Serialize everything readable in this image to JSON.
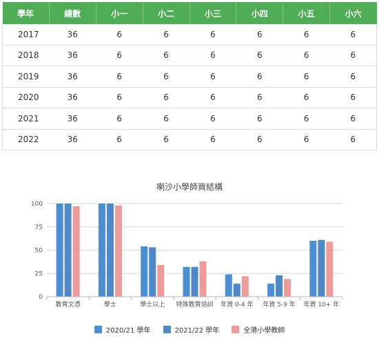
{
  "table": {
    "headers": [
      "學年",
      "總數",
      "小一",
      "小二",
      "小三",
      "小四",
      "小五",
      "小六"
    ],
    "rows": [
      [
        "2017",
        "36",
        "6",
        "6",
        "6",
        "6",
        "6",
        "6"
      ],
      [
        "2018",
        "36",
        "6",
        "6",
        "6",
        "6",
        "6",
        "6"
      ],
      [
        "2019",
        "36",
        "6",
        "6",
        "6",
        "6",
        "6",
        "6"
      ],
      [
        "2020",
        "36",
        "6",
        "6",
        "6",
        "6",
        "6",
        "6"
      ],
      [
        "2021",
        "36",
        "6",
        "6",
        "6",
        "6",
        "6",
        "6"
      ],
      [
        "2022",
        "36",
        "6",
        "6",
        "6",
        "6",
        "6",
        "6"
      ]
    ]
  },
  "colors": {
    "header_green": "#4fad55",
    "series1": "#4a8fd4",
    "series2": "#4f88c8",
    "series3": "#ef9b9b"
  },
  "chart_data": {
    "type": "bar",
    "title": "喇沙小學師資結構",
    "categories": [
      "教育文憑",
      "學士",
      "學士以上",
      "特殊教育培訓",
      "年資 0-4 年",
      "年資 5-9 年",
      "年資 10+ 年"
    ],
    "series": [
      {
        "name": "2020/21 學年",
        "values": [
          100,
          100,
          54,
          32,
          24,
          14,
          60
        ]
      },
      {
        "name": "2021/22 學年",
        "values": [
          100,
          100,
          53,
          32,
          14,
          23,
          61
        ]
      },
      {
        "name": "全港小學教師",
        "values": [
          97,
          98,
          34,
          38,
          22,
          19,
          59
        ]
      }
    ],
    "yticks": [
      "0",
      "25",
      "50",
      "75",
      "100"
    ],
    "ylim": [
      0,
      100
    ],
    "grid": true,
    "legend": "bottom"
  }
}
